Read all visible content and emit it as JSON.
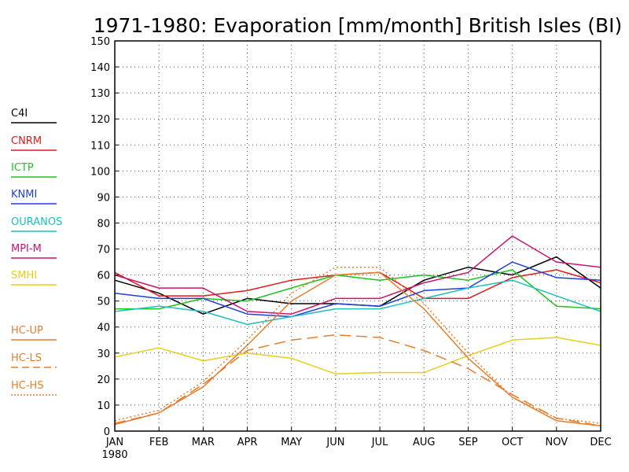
{
  "chart_data": {
    "type": "line",
    "title": "1971-1980: Evaporation [mm/month] British Isles (BI)",
    "xlabel": "",
    "ylabel": "",
    "categories": [
      "JAN",
      "FEB",
      "MAR",
      "APR",
      "MAY",
      "JUN",
      "JUL",
      "AUG",
      "SEP",
      "OCT",
      "NOV",
      "DEC"
    ],
    "x_sublabel": "1980",
    "ylim": [
      0,
      150
    ],
    "yticks": [
      0,
      10,
      20,
      30,
      40,
      50,
      60,
      70,
      80,
      90,
      100,
      110,
      120,
      130,
      140,
      150
    ],
    "grid": true,
    "legend_position": "left",
    "series": [
      {
        "name": "C4I",
        "color": "#000000",
        "dash": "solid",
        "values": [
          58,
          53,
          45,
          51,
          49,
          49,
          48,
          58,
          63,
          60,
          67,
          55
        ]
      },
      {
        "name": "CNRM",
        "color": "#e01b1b",
        "dash": "solid",
        "values": [
          61,
          52,
          52,
          54,
          58,
          60,
          61,
          51,
          51,
          59,
          62,
          57
        ]
      },
      {
        "name": "ICTP",
        "color": "#1fc21f",
        "dash": "solid",
        "values": [
          47,
          47,
          51,
          50,
          55,
          60,
          58,
          60,
          58,
          62,
          48,
          47
        ]
      },
      {
        "name": "KNMI",
        "color": "#1f3fd9",
        "dash": "solid",
        "values": [
          53,
          51,
          51,
          45,
          44,
          49,
          48,
          54,
          55,
          65,
          59,
          58
        ]
      },
      {
        "name": "OURANOS",
        "color": "#1fbfbf",
        "dash": "solid",
        "values": [
          46,
          48,
          46,
          41,
          44,
          47,
          47,
          51,
          55,
          58,
          52,
          46
        ]
      },
      {
        "name": "MPI-M",
        "color": "#c8146e",
        "dash": "solid",
        "values": [
          60,
          55,
          55,
          46,
          45,
          51,
          51,
          57,
          61,
          75,
          65,
          63
        ]
      },
      {
        "name": "SMHI",
        "color": "#e6cf1a",
        "dash": "solid",
        "values": [
          28.5,
          32,
          27,
          30,
          28,
          22,
          22.5,
          22.5,
          29,
          35,
          36,
          33
        ]
      },
      {
        "name": "HC-UP",
        "color": "#e87d2d",
        "dash": "solid",
        "values": [
          2.5,
          7,
          17,
          33,
          50,
          60,
          61,
          47,
          28,
          13,
          4,
          2
        ]
      },
      {
        "name": "HC-LS",
        "color": "#e87d2d",
        "dash": "longdash",
        "values": [
          3,
          7,
          18,
          31,
          35,
          37,
          36,
          31,
          24,
          14,
          5,
          2
        ]
      },
      {
        "name": "HC-HS",
        "color": "#e87d2d",
        "dash": "dotted",
        "values": [
          4,
          8,
          19,
          35,
          53,
          63,
          63,
          49,
          30,
          13,
          5,
          3
        ]
      }
    ]
  }
}
